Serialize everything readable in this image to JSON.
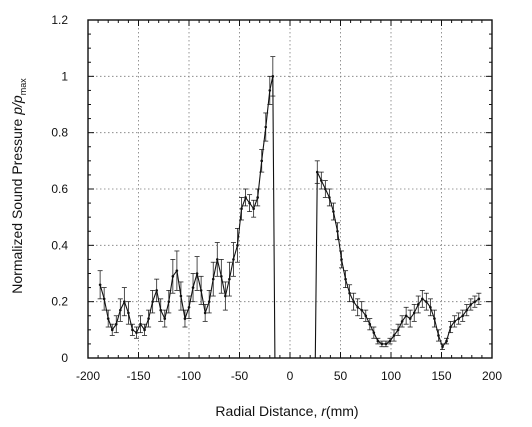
{
  "chart_data": {
    "type": "line",
    "xlabel_main": "Radial Distance, ",
    "xlabel_var": "r",
    "xlabel_unit": "(mm)",
    "ylabel_main": "Normalized Sound Pressure ",
    "ylabel_var": "p/p",
    "ylabel_sub": "max",
    "xlim": [
      -200,
      200
    ],
    "ylim": [
      0,
      1.2
    ],
    "xticks": [
      -200,
      -150,
      -100,
      -50,
      0,
      50,
      100,
      150,
      200
    ],
    "xtick_labels": [
      "-200",
      "-150",
      "-100",
      "-50",
      "0",
      "50",
      "100",
      "150",
      "200"
    ],
    "yticks": [
      0,
      0.2,
      0.4,
      0.6,
      0.8,
      1.0,
      1.2
    ],
    "ytick_labels": [
      "0",
      "0.2",
      "0.4",
      "0.6",
      "0.8",
      "1",
      "1.2"
    ],
    "grid": true,
    "error_bars": true,
    "series": [
      {
        "points": [
          {
            "x": -188,
            "y": 0.26,
            "err": 0.05
          },
          {
            "x": -184,
            "y": 0.21,
            "err": 0.04
          },
          {
            "x": -180,
            "y": 0.14,
            "err": 0.03
          },
          {
            "x": -176,
            "y": 0.1,
            "err": 0.02
          },
          {
            "x": -172,
            "y": 0.12,
            "err": 0.03
          },
          {
            "x": -168,
            "y": 0.17,
            "err": 0.04
          },
          {
            "x": -164,
            "y": 0.2,
            "err": 0.05
          },
          {
            "x": -160,
            "y": 0.16,
            "err": 0.04
          },
          {
            "x": -156,
            "y": 0.1,
            "err": 0.02
          },
          {
            "x": -152,
            "y": 0.09,
            "err": 0.02
          },
          {
            "x": -148,
            "y": 0.12,
            "err": 0.03
          },
          {
            "x": -144,
            "y": 0.1,
            "err": 0.02
          },
          {
            "x": -140,
            "y": 0.14,
            "err": 0.03
          },
          {
            "x": -136,
            "y": 0.2,
            "err": 0.04
          },
          {
            "x": -132,
            "y": 0.24,
            "err": 0.04
          },
          {
            "x": -128,
            "y": 0.17,
            "err": 0.04
          },
          {
            "x": -124,
            "y": 0.14,
            "err": 0.03
          },
          {
            "x": -120,
            "y": 0.2,
            "err": 0.04
          },
          {
            "x": -116,
            "y": 0.29,
            "err": 0.06
          },
          {
            "x": -112,
            "y": 0.31,
            "err": 0.07
          },
          {
            "x": -108,
            "y": 0.22,
            "err": 0.05
          },
          {
            "x": -104,
            "y": 0.14,
            "err": 0.03
          },
          {
            "x": -100,
            "y": 0.18,
            "err": 0.04
          },
          {
            "x": -96,
            "y": 0.25,
            "err": 0.05
          },
          {
            "x": -92,
            "y": 0.3,
            "err": 0.06
          },
          {
            "x": -88,
            "y": 0.24,
            "err": 0.05
          },
          {
            "x": -84,
            "y": 0.16,
            "err": 0.03
          },
          {
            "x": -80,
            "y": 0.2,
            "err": 0.04
          },
          {
            "x": -76,
            "y": 0.28,
            "err": 0.06
          },
          {
            "x": -72,
            "y": 0.35,
            "err": 0.06
          },
          {
            "x": -68,
            "y": 0.29,
            "err": 0.06
          },
          {
            "x": -64,
            "y": 0.22,
            "err": 0.05
          },
          {
            "x": -60,
            "y": 0.28,
            "err": 0.06
          },
          {
            "x": -56,
            "y": 0.35,
            "err": 0.06
          },
          {
            "x": -52,
            "y": 0.4,
            "err": 0.06
          },
          {
            "x": -48,
            "y": 0.53,
            "err": 0.04
          },
          {
            "x": -44,
            "y": 0.57,
            "err": 0.03
          },
          {
            "x": -40,
            "y": 0.55,
            "err": 0.03
          },
          {
            "x": -36,
            "y": 0.53,
            "err": 0.03
          },
          {
            "x": -32,
            "y": 0.57,
            "err": 0.03
          },
          {
            "x": -28,
            "y": 0.7,
            "err": 0.04
          },
          {
            "x": -24,
            "y": 0.82,
            "err": 0.05
          },
          {
            "x": -20,
            "y": 0.95,
            "err": 0.05
          },
          {
            "x": -17,
            "y": 1.0,
            "err": 0.07
          },
          {
            "x": -15,
            "y": 0.0,
            "err": 0
          },
          {
            "x": 25,
            "y": 0.0,
            "err": 0
          },
          {
            "x": 27,
            "y": 0.66,
            "err": 0.04
          },
          {
            "x": 31,
            "y": 0.63,
            "err": 0.03
          },
          {
            "x": 35,
            "y": 0.6,
            "err": 0.03
          },
          {
            "x": 39,
            "y": 0.57,
            "err": 0.03
          },
          {
            "x": 43,
            "y": 0.52,
            "err": 0.03
          },
          {
            "x": 47,
            "y": 0.45,
            "err": 0.03
          },
          {
            "x": 51,
            "y": 0.35,
            "err": 0.03
          },
          {
            "x": 55,
            "y": 0.28,
            "err": 0.03
          },
          {
            "x": 59,
            "y": 0.23,
            "err": 0.03
          },
          {
            "x": 63,
            "y": 0.2,
            "err": 0.03
          },
          {
            "x": 67,
            "y": 0.18,
            "err": 0.03
          },
          {
            "x": 71,
            "y": 0.17,
            "err": 0.03
          },
          {
            "x": 75,
            "y": 0.15,
            "err": 0.02
          },
          {
            "x": 79,
            "y": 0.12,
            "err": 0.02
          },
          {
            "x": 83,
            "y": 0.09,
            "err": 0.02
          },
          {
            "x": 87,
            "y": 0.06,
            "err": 0.01
          },
          {
            "x": 91,
            "y": 0.05,
            "err": 0.01
          },
          {
            "x": 95,
            "y": 0.05,
            "err": 0.01
          },
          {
            "x": 99,
            "y": 0.06,
            "err": 0.01
          },
          {
            "x": 103,
            "y": 0.08,
            "err": 0.02
          },
          {
            "x": 107,
            "y": 0.1,
            "err": 0.02
          },
          {
            "x": 111,
            "y": 0.13,
            "err": 0.02
          },
          {
            "x": 115,
            "y": 0.15,
            "err": 0.03
          },
          {
            "x": 119,
            "y": 0.14,
            "err": 0.03
          },
          {
            "x": 123,
            "y": 0.16,
            "err": 0.03
          },
          {
            "x": 127,
            "y": 0.19,
            "err": 0.03
          },
          {
            "x": 131,
            "y": 0.21,
            "err": 0.03
          },
          {
            "x": 135,
            "y": 0.2,
            "err": 0.03
          },
          {
            "x": 139,
            "y": 0.18,
            "err": 0.03
          },
          {
            "x": 143,
            "y": 0.14,
            "err": 0.03
          },
          {
            "x": 147,
            "y": 0.08,
            "err": 0.02
          },
          {
            "x": 151,
            "y": 0.04,
            "err": 0.01
          },
          {
            "x": 155,
            "y": 0.06,
            "err": 0.01
          },
          {
            "x": 159,
            "y": 0.11,
            "err": 0.02
          },
          {
            "x": 163,
            "y": 0.13,
            "err": 0.02
          },
          {
            "x": 167,
            "y": 0.14,
            "err": 0.02
          },
          {
            "x": 171,
            "y": 0.15,
            "err": 0.02
          },
          {
            "x": 175,
            "y": 0.17,
            "err": 0.02
          },
          {
            "x": 179,
            "y": 0.19,
            "err": 0.02
          },
          {
            "x": 183,
            "y": 0.2,
            "err": 0.02
          },
          {
            "x": 187,
            "y": 0.21,
            "err": 0.02
          }
        ]
      }
    ]
  }
}
